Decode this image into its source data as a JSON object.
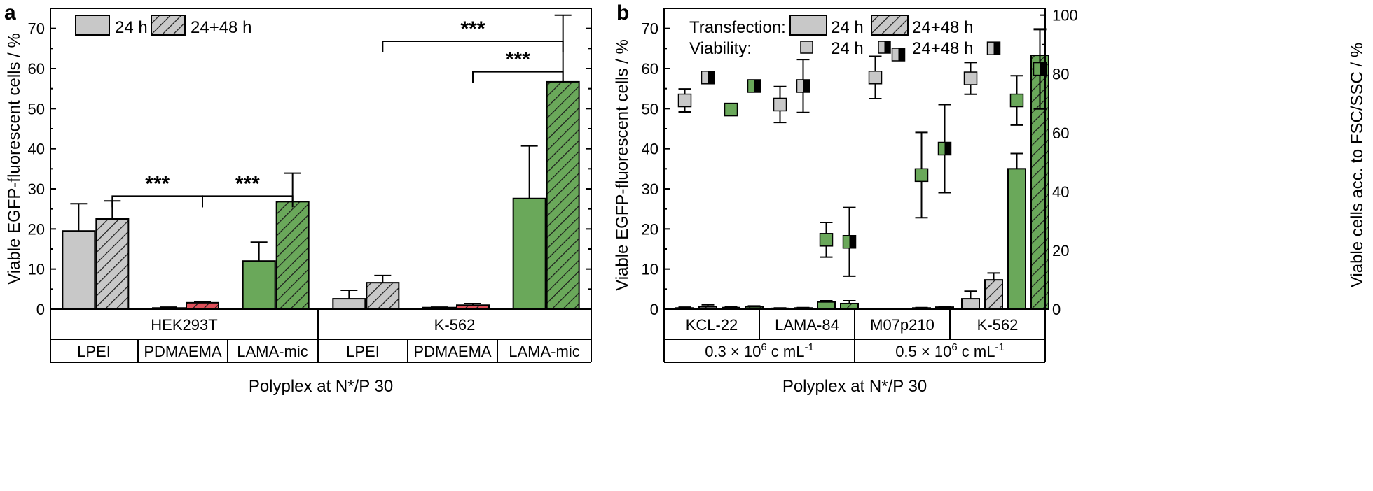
{
  "colors": {
    "grey": "#c8c8c8",
    "red": "#e0505a",
    "green": "#6aa85a",
    "black": "#000000"
  },
  "chart_data": [
    {
      "panel_label": "a",
      "type": "bar",
      "ylabel": "Viable EGFP-fluorescent cells / %",
      "xlabel": "Polyplex at N*/P 30",
      "ylim": [
        0,
        75
      ],
      "yticks": [
        0,
        10,
        20,
        30,
        40,
        50,
        60,
        70
      ],
      "legend": {
        "position": "top-left",
        "entries": [
          "24 h",
          "24+48 h"
        ]
      },
      "cell_lines": [
        "HEK293T",
        "K-562"
      ],
      "polyplexes": [
        "LPEI",
        "PDMAEMA",
        "LAMA-mic",
        "LPEI",
        "PDMAEMA",
        "LAMA-mic"
      ],
      "bars": [
        {
          "group": 0,
          "time": "24 h",
          "color": "grey",
          "value": 19.5,
          "error": 6.8
        },
        {
          "group": 0,
          "time": "24+48 h",
          "color": "grey",
          "value": 22.5,
          "error": 4.5
        },
        {
          "group": 1,
          "time": "24 h",
          "color": "red",
          "value": 0.3,
          "error": 0.2
        },
        {
          "group": 1,
          "time": "24+48 h",
          "color": "red",
          "value": 1.6,
          "error": 0.3
        },
        {
          "group": 2,
          "time": "24 h",
          "color": "green",
          "value": 12.0,
          "error": 4.7
        },
        {
          "group": 2,
          "time": "24+48 h",
          "color": "green",
          "value": 26.8,
          "error": 7.1
        },
        {
          "group": 3,
          "time": "24 h",
          "color": "grey",
          "value": 2.6,
          "error": 2.1
        },
        {
          "group": 3,
          "time": "24+48 h",
          "color": "grey",
          "value": 6.6,
          "error": 1.8
        },
        {
          "group": 4,
          "time": "24 h",
          "color": "red",
          "value": 0.4,
          "error": 0.1
        },
        {
          "group": 4,
          "time": "24+48 h",
          "color": "red",
          "value": 1.0,
          "error": 0.4
        },
        {
          "group": 5,
          "time": "24 h",
          "color": "green",
          "value": 27.6,
          "error": 13.1
        },
        {
          "group": 5,
          "time": "24+48 h",
          "color": "green",
          "value": 56.7,
          "error": 16.6
        }
      ],
      "significance": [
        {
          "label": "***",
          "from_bar": 1,
          "to_bar": 3,
          "y": 28.2
        },
        {
          "label": "***",
          "from_bar": 3,
          "to_bar": 5,
          "y": 28.2
        },
        {
          "label": "***",
          "from_bar": 7,
          "to_bar": 11,
          "y": 66.8
        },
        {
          "label": "***",
          "from_bar": 9,
          "to_bar": 11,
          "y": 59.2
        }
      ]
    },
    {
      "panel_label": "b",
      "type": "bar",
      "ylabel": "Viable EGFP-fluorescent cells / %",
      "y2label": "Viable cells acc. to FSC/SSC / %",
      "xlabel": "Polyplex at N*/P 30",
      "ylim": [
        0,
        75
      ],
      "yticks": [
        0,
        10,
        20,
        30,
        40,
        50,
        60,
        70
      ],
      "y2lim": [
        0,
        102.3
      ],
      "y2ticks": [
        0,
        20,
        40,
        60,
        80,
        100
      ],
      "legend": {
        "position": "top",
        "transfection_label": "Transfection:",
        "viability_label": "Viability:",
        "entries": [
          "24 h",
          "24+48 h"
        ]
      },
      "cell_lines": [
        "KCL-22",
        "LAMA-84",
        "M07p210",
        "K-562"
      ],
      "densities": [
        "0.3 × 10",
        "6",
        " c mL",
        "-1",
        "0.5 × 10",
        "6",
        " c mL",
        "-1"
      ],
      "bars": [
        {
          "index": 0,
          "time": "24 h",
          "color": "grey",
          "value": 0.3,
          "error": 0.2
        },
        {
          "index": 1,
          "time": "24+48 h",
          "color": "grey",
          "value": 0.6,
          "error": 0.5
        },
        {
          "index": 2,
          "time": "24 h",
          "color": "green",
          "value": 0.4,
          "error": 0.2
        },
        {
          "index": 3,
          "time": "24+48 h",
          "color": "green",
          "value": 0.6,
          "error": 0.2
        },
        {
          "index": 4,
          "time": "24 h",
          "color": "grey",
          "value": 0.2,
          "error": 0.1
        },
        {
          "index": 5,
          "time": "24+48 h",
          "color": "grey",
          "value": 0.3,
          "error": 0.1
        },
        {
          "index": 6,
          "time": "24 h",
          "color": "green",
          "value": 1.8,
          "error": 0.3
        },
        {
          "index": 7,
          "time": "24+48 h",
          "color": "green",
          "value": 1.4,
          "error": 0.7
        },
        {
          "index": 8,
          "time": "24 h",
          "color": "grey",
          "value": 0.1,
          "error": 0.05
        },
        {
          "index": 9,
          "time": "24+48 h",
          "color": "grey",
          "value": 0.1,
          "error": 0.05
        },
        {
          "index": 10,
          "time": "24 h",
          "color": "green",
          "value": 0.3,
          "error": 0.1
        },
        {
          "index": 11,
          "time": "24+48 h",
          "color": "green",
          "value": 0.5,
          "error": 0.1
        },
        {
          "index": 12,
          "time": "24 h",
          "color": "grey",
          "value": 2.6,
          "error": 1.9
        },
        {
          "index": 13,
          "time": "24+48 h",
          "color": "grey",
          "value": 7.3,
          "error": 1.7
        },
        {
          "index": 14,
          "time": "24 h",
          "color": "green",
          "value": 35.0,
          "error": 3.8
        },
        {
          "index": 15,
          "time": "24+48 h",
          "color": "green",
          "value": 63.3,
          "error": 6.4
        }
      ],
      "viability_points": [
        {
          "index": 0,
          "time": "24 h",
          "color": "grey",
          "value": 71.0,
          "error": 3.9
        },
        {
          "index": 1,
          "time": "24+48 h",
          "color": "grey",
          "value": 78.8,
          "error": 1.7
        },
        {
          "index": 2,
          "time": "24 h",
          "color": "green",
          "value": 67.9,
          "error": 0.8
        },
        {
          "index": 3,
          "time": "24+48 h",
          "color": "green",
          "value": 75.9,
          "error": 0.8
        },
        {
          "index": 4,
          "time": "24 h",
          "color": "grey",
          "value": 69.6,
          "error": 6.1
        },
        {
          "index": 5,
          "time": "24+48 h",
          "color": "grey",
          "value": 75.9,
          "error": 9.0
        },
        {
          "index": 6,
          "time": "24 h",
          "color": "green",
          "value": 23.6,
          "error": 5.9
        },
        {
          "index": 7,
          "time": "24+48 h",
          "color": "green",
          "value": 22.9,
          "error": 11.7
        },
        {
          "index": 8,
          "time": "24 h",
          "color": "grey",
          "value": 78.8,
          "error": 7.2
        },
        {
          "index": 9,
          "time": "24+48 h",
          "color": "grey",
          "value": 86.6,
          "error": 1.4
        },
        {
          "index": 10,
          "time": "24 h",
          "color": "green",
          "value": 45.6,
          "error": 14.5
        },
        {
          "index": 11,
          "time": "24+48 h",
          "color": "green",
          "value": 54.6,
          "error": 15.0
        },
        {
          "index": 12,
          "time": "24 h",
          "color": "grey",
          "value": 78.5,
          "error": 5.4
        },
        {
          "index": 13,
          "time": "24+48 h",
          "color": "grey",
          "value": 88.7,
          "error": 0.8
        },
        {
          "index": 14,
          "time": "24 h",
          "color": "green",
          "value": 71.0,
          "error": 8.4
        },
        {
          "index": 15,
          "time": "24+48 h",
          "color": "green",
          "value": 81.7,
          "error": 13.6
        }
      ]
    }
  ]
}
